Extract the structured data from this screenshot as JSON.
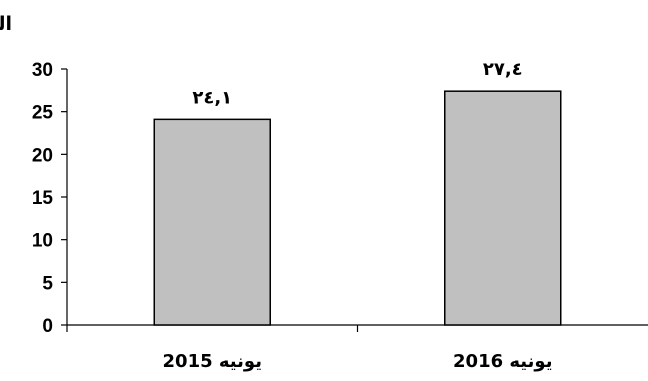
{
  "chart_data": {
    "type": "bar",
    "ylabel": "العدد بالمليون",
    "categories": [
      "يونيه 2015",
      "يونيه 2016"
    ],
    "values": [
      24.1,
      27.4
    ],
    "data_labels": [
      "٢٤,١",
      "٢٧,٤"
    ],
    "ylim": [
      0,
      30
    ],
    "yticks": [
      0,
      5,
      10,
      15,
      20,
      25,
      30
    ],
    "grid": false,
    "legend": "none",
    "bar_color": "#c0c0c0",
    "bar_edge_color": "#000000"
  }
}
